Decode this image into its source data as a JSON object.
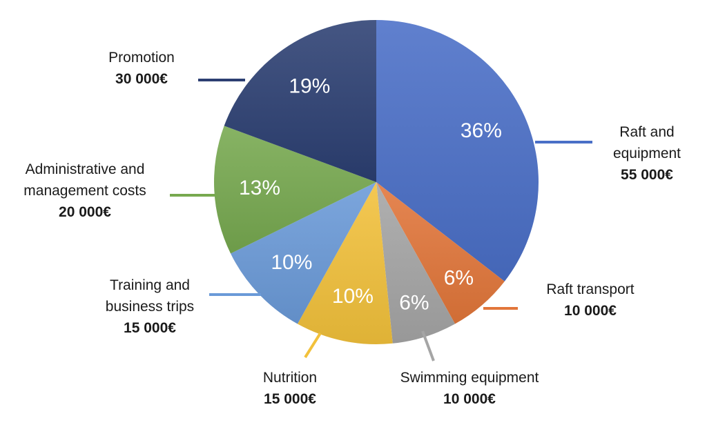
{
  "chart_data": {
    "type": "pie",
    "title": "",
    "unit": "€",
    "slices": [
      {
        "label": "Raft and\nequipment",
        "amount": "55 000€",
        "value": 55000,
        "percent": "36%",
        "color": "#4a6fc7"
      },
      {
        "label": "Raft transport",
        "amount": "10 000€",
        "value": 10000,
        "percent": "6%",
        "color": "#e2763a"
      },
      {
        "label": "Swimming equipment",
        "amount": "10 000€",
        "value": 10000,
        "percent": "6%",
        "color": "#a5a5a5"
      },
      {
        "label": "Nutrition",
        "amount": "15 000€",
        "value": 15000,
        "percent": "10%",
        "color": "#f2c13b"
      },
      {
        "label": "Training and\nbusiness trips",
        "amount": "15 000€",
        "value": 15000,
        "percent": "10%",
        "color": "#6a9ad8"
      },
      {
        "label": "Administrative and\nmanagement costs",
        "amount": "20 000€",
        "value": 20000,
        "percent": "13%",
        "color": "#77a94f"
      },
      {
        "label": "Promotion",
        "amount": "30 000€",
        "value": 30000,
        "percent": "19%",
        "color": "#2c3f72"
      }
    ]
  }
}
